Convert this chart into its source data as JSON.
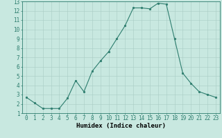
{
  "x": [
    0,
    1,
    2,
    3,
    4,
    5,
    6,
    7,
    8,
    9,
    10,
    11,
    12,
    13,
    14,
    15,
    16,
    17,
    18,
    19,
    20,
    21,
    22,
    23
  ],
  "y": [
    2.7,
    2.1,
    1.5,
    1.5,
    1.5,
    2.6,
    4.5,
    3.3,
    5.5,
    6.6,
    7.6,
    9.0,
    10.4,
    12.3,
    12.3,
    12.2,
    12.8,
    12.7,
    9.0,
    5.3,
    4.2,
    3.3,
    3.0,
    2.7
  ],
  "xlim": [
    -0.5,
    23.5
  ],
  "ylim": [
    1,
    13
  ],
  "xticks": [
    0,
    1,
    2,
    3,
    4,
    5,
    6,
    7,
    8,
    9,
    10,
    11,
    12,
    13,
    14,
    15,
    16,
    17,
    18,
    19,
    20,
    21,
    22,
    23
  ],
  "yticks": [
    1,
    2,
    3,
    4,
    5,
    6,
    7,
    8,
    9,
    10,
    11,
    12,
    13
  ],
  "xlabel": "Humidex (Indice chaleur)",
  "line_color": "#2d7d6e",
  "marker_color": "#2d7d6e",
  "bg_color": "#c8e8e0",
  "grid_color": "#a8ccc4",
  "xlabel_fontsize": 6.5,
  "tick_fontsize": 5.5
}
